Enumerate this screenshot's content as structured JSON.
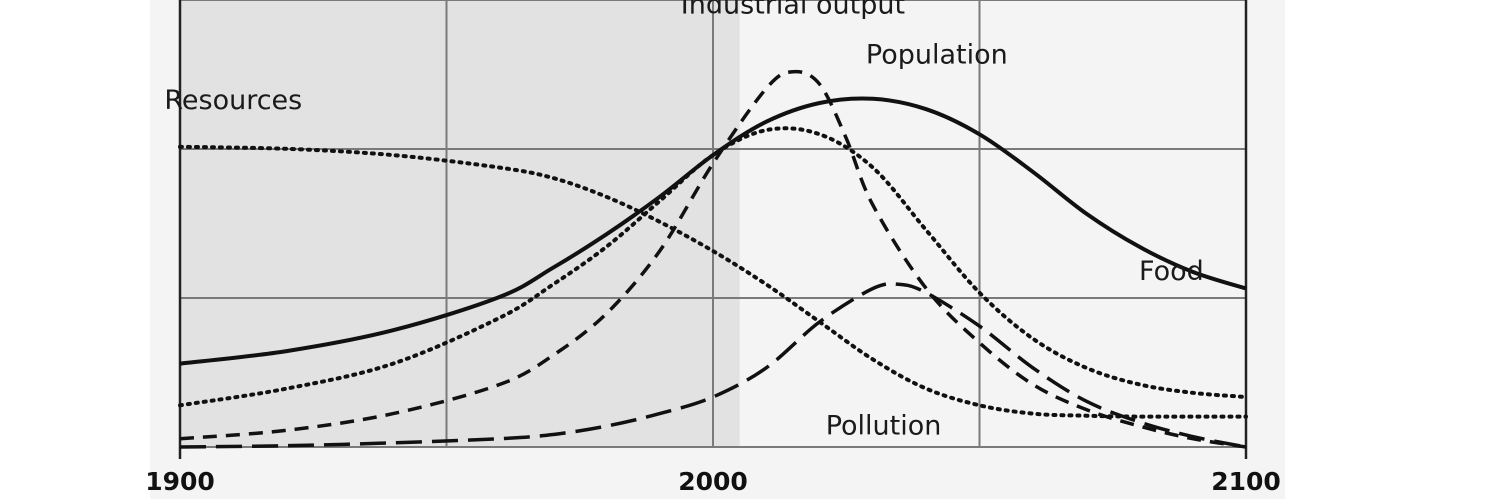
{
  "chart_data": {
    "type": "line",
    "title": "",
    "xlabel": "",
    "ylabel": "",
    "xlim": [
      1900,
      2100
    ],
    "ylim": [
      0,
      1
    ],
    "grid": true,
    "shaded_region": [
      1900,
      2005
    ],
    "x_ticks": [
      {
        "value": 1900,
        "label": "1900"
      },
      {
        "value": 2000,
        "label": "2000"
      },
      {
        "value": 2100,
        "label": "2100"
      }
    ],
    "series": [
      {
        "name": "Resources",
        "style": "dotted",
        "x": [
          1900,
          1920,
          1940,
          1960,
          1970,
          1980,
          1990,
          2000,
          2010,
          2020,
          2030,
          2040,
          2050,
          2060,
          2070,
          2080,
          2100
        ],
        "y": [
          0.72,
          0.715,
          0.7,
          0.67,
          0.645,
          0.6,
          0.54,
          0.47,
          0.39,
          0.3,
          0.21,
          0.14,
          0.1,
          0.08,
          0.075,
          0.073,
          0.073
        ]
      },
      {
        "name": "Population",
        "style": "solid",
        "x": [
          1900,
          1920,
          1940,
          1960,
          1970,
          1980,
          1990,
          2000,
          2010,
          2020,
          2030,
          2040,
          2050,
          2060,
          2070,
          2080,
          2090,
          2100
        ],
        "y": [
          0.2,
          0.23,
          0.28,
          0.36,
          0.43,
          0.51,
          0.6,
          0.7,
          0.78,
          0.825,
          0.835,
          0.81,
          0.75,
          0.66,
          0.56,
          0.48,
          0.42,
          0.38
        ]
      },
      {
        "name": "Food",
        "style": "dotted",
        "x": [
          1900,
          1920,
          1940,
          1960,
          1970,
          1980,
          1990,
          2000,
          2010,
          2020,
          2030,
          2040,
          2050,
          2060,
          2070,
          2080,
          2090,
          2100
        ],
        "y": [
          0.1,
          0.14,
          0.2,
          0.31,
          0.39,
          0.48,
          0.59,
          0.7,
          0.76,
          0.75,
          0.67,
          0.52,
          0.37,
          0.26,
          0.19,
          0.15,
          0.13,
          0.12
        ]
      },
      {
        "name": "Industrial output",
        "style": "dashed",
        "x": [
          1900,
          1920,
          1940,
          1960,
          1970,
          1980,
          1990,
          2000,
          2010,
          2015,
          2020,
          2025,
          2030,
          2040,
          2050,
          2060,
          2070,
          2080,
          2090,
          2100
        ],
        "y": [
          0.02,
          0.04,
          0.08,
          0.15,
          0.22,
          0.32,
          0.47,
          0.68,
          0.86,
          0.9,
          0.87,
          0.74,
          0.58,
          0.38,
          0.25,
          0.15,
          0.09,
          0.05,
          0.02,
          0.0
        ]
      },
      {
        "name": "Pollution",
        "style": "long-dashed",
        "x": [
          1900,
          1920,
          1940,
          1960,
          1970,
          1980,
          1990,
          2000,
          2010,
          2020,
          2030,
          2035,
          2040,
          2050,
          2060,
          2070,
          2080,
          2090,
          2100
        ],
        "y": [
          0.0,
          0.003,
          0.01,
          0.02,
          0.03,
          0.05,
          0.08,
          0.12,
          0.19,
          0.3,
          0.38,
          0.39,
          0.37,
          0.29,
          0.19,
          0.11,
          0.06,
          0.025,
          0.0
        ]
      }
    ],
    "annotations": [
      {
        "series": "Industrial output",
        "text": "Industrial output",
        "at": [
          2015,
          1.04
        ]
      },
      {
        "series": "Population",
        "text": "Population",
        "at": [
          2042,
          0.92
        ]
      },
      {
        "series": "Resources",
        "text": "Resources",
        "at": [
          1910,
          0.81
        ]
      },
      {
        "series": "Food",
        "text": "Food",
        "at": [
          2086,
          0.4
        ]
      },
      {
        "series": "Pollution",
        "text": "Pollution",
        "at": [
          2032,
          0.03
        ]
      }
    ]
  }
}
